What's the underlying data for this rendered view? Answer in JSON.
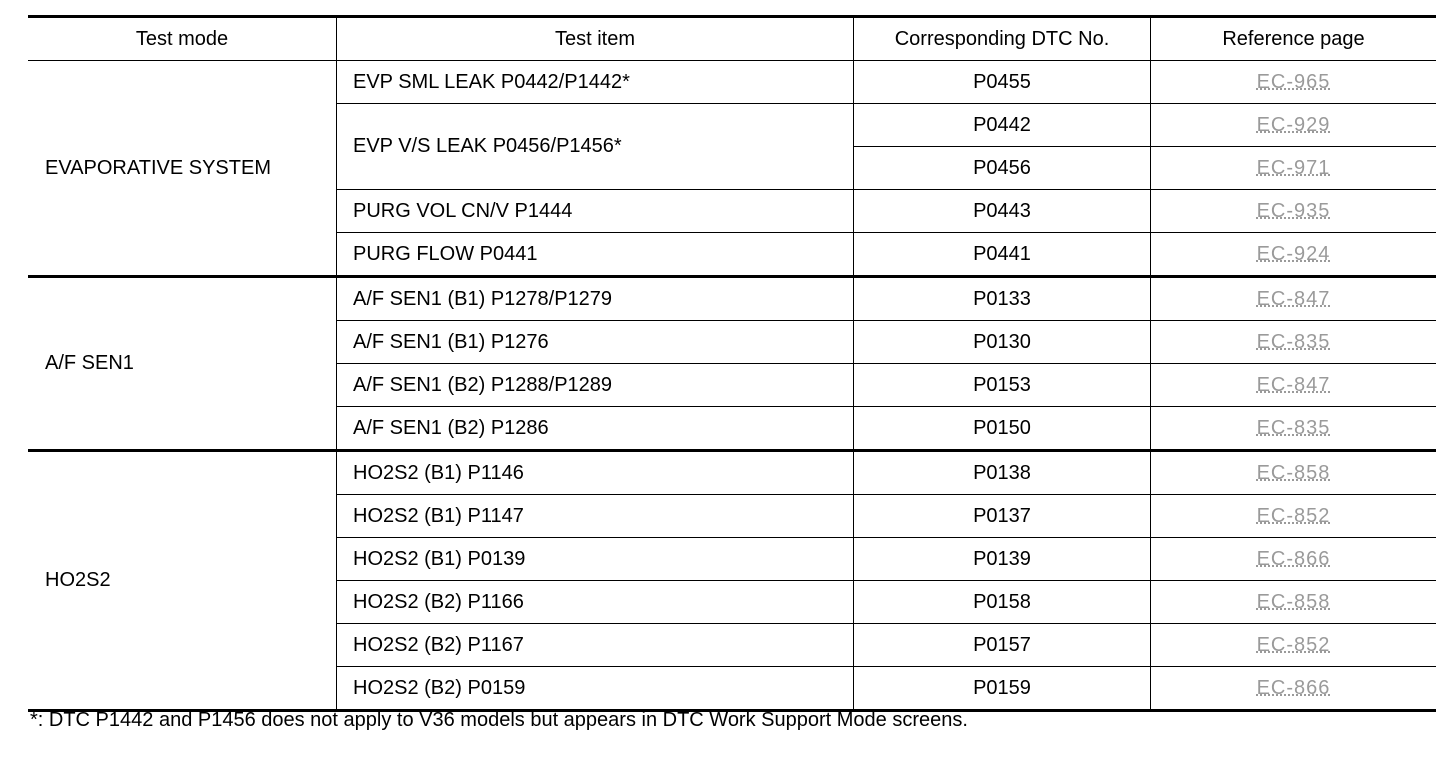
{
  "headers": {
    "test_mode": "Test mode",
    "test_item": "Test item",
    "dtc": "Corresponding DTC No.",
    "ref": "Reference page"
  },
  "groups": [
    {
      "mode": "EVAPORATIVE SYSTEM"
    },
    {
      "mode": "A/F SEN1"
    },
    {
      "mode": "HO2S2"
    }
  ],
  "rows": [
    {
      "item": "EVP SML LEAK P0442/P1442*",
      "dtc": "P0455",
      "ref": "EC-965"
    },
    {
      "item": "EVP V/S LEAK P0456/P1456*",
      "dtc": "P0442",
      "ref": "EC-929"
    },
    {
      "dtc": "P0456",
      "ref": "EC-971"
    },
    {
      "item": "PURG VOL CN/V P1444",
      "dtc": "P0443",
      "ref": "EC-935"
    },
    {
      "item": "PURG FLOW P0441",
      "dtc": "P0441",
      "ref": "EC-924"
    },
    {
      "item": "A/F SEN1 (B1) P1278/P1279",
      "dtc": "P0133",
      "ref": "EC-847"
    },
    {
      "item": "A/F SEN1 (B1) P1276",
      "dtc": "P0130",
      "ref": "EC-835"
    },
    {
      "item": "A/F SEN1 (B2) P1288/P1289",
      "dtc": "P0153",
      "ref": "EC-847"
    },
    {
      "item": "A/F SEN1 (B2) P1286",
      "dtc": "P0150",
      "ref": "EC-835"
    },
    {
      "item": "HO2S2 (B1) P1146",
      "dtc": "P0138",
      "ref": "EC-858"
    },
    {
      "item": "HO2S2 (B1) P1147",
      "dtc": "P0137",
      "ref": "EC-852"
    },
    {
      "item": "HO2S2 (B1) P0139",
      "dtc": "P0139",
      "ref": "EC-866"
    },
    {
      "item": "HO2S2 (B2) P1166",
      "dtc": "P0158",
      "ref": "EC-858"
    },
    {
      "item": "HO2S2 (B2) P1167",
      "dtc": "P0157",
      "ref": "EC-852"
    },
    {
      "item": "HO2S2 (B2) P0159",
      "dtc": "P0159",
      "ref": "EC-866"
    }
  ],
  "footnote": "*: DTC P1442 and P1456 does not apply to V36 models but appears in DTC Work Support Mode screens."
}
